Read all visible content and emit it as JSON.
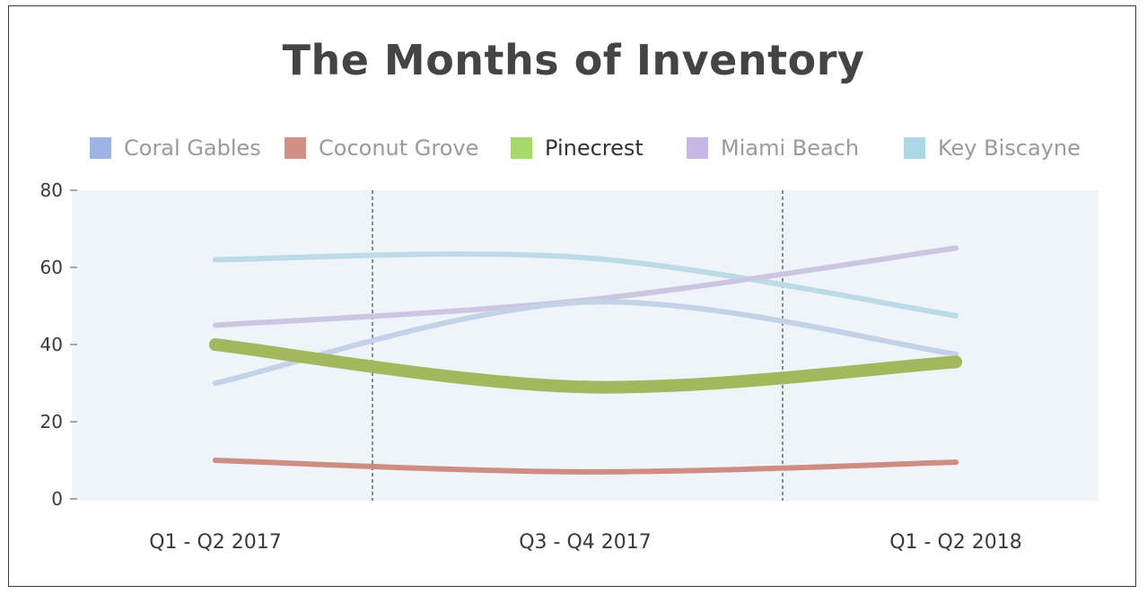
{
  "chart_data": {
    "type": "line",
    "title": "The Months of Inventory",
    "categories": [
      "Q1 - Q2 2017",
      "Q3 - Q4 2017",
      "Q1 - Q2 2018"
    ],
    "ylim": [
      0,
      80
    ],
    "yticks": [
      0,
      20,
      40,
      60,
      80
    ],
    "legend_position": "top",
    "grid": false,
    "highlighted_series": "Pinecrest",
    "series": [
      {
        "name": "Coral Gables",
        "values": [
          30,
          51,
          37.5
        ],
        "color": "#9cb4e6",
        "line_color": "#c3d2e7"
      },
      {
        "name": "Coconut Grove",
        "values": [
          10,
          7,
          9.5
        ],
        "color": "#d39185",
        "line_color": "#cf8c82"
      },
      {
        "name": "Pinecrest",
        "values": [
          40,
          29,
          35.5
        ],
        "color": "#a6d96a",
        "line_color": "#a1b85c"
      },
      {
        "name": "Miami Beach",
        "values": [
          45,
          51.5,
          65
        ],
        "color": "#c8b7e6",
        "line_color": "#cdc6e2"
      },
      {
        "name": "Key Biscayne",
        "values": [
          62,
          62.5,
          47.5
        ],
        "color": "#add9e6",
        "line_color": "#bcdbe6"
      }
    ]
  }
}
